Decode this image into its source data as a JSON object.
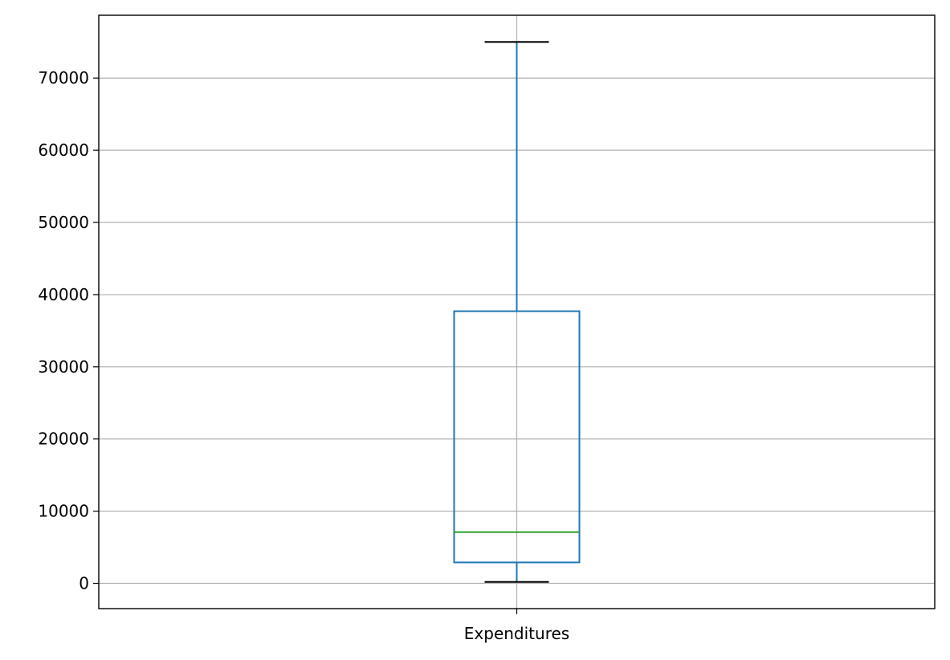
{
  "chart_data": {
    "type": "box",
    "categories": [
      "Expenditures"
    ],
    "boxes": [
      {
        "label": "Expenditures",
        "whisker_low": 200,
        "q1": 2900,
        "median": 7100,
        "q3": 37700,
        "whisker_high": 75000
      }
    ],
    "yticks": [
      0,
      10000,
      20000,
      30000,
      40000,
      50000,
      60000,
      70000
    ],
    "ylim": [
      -3500,
      78700
    ],
    "grid": true,
    "title": "",
    "xlabel": "",
    "ylabel": ""
  },
  "colors": {
    "box": "#1f77b4",
    "median": "#2ca02c",
    "caps": "#000000",
    "grid": "#b0b0b0",
    "axes": "#000000"
  }
}
